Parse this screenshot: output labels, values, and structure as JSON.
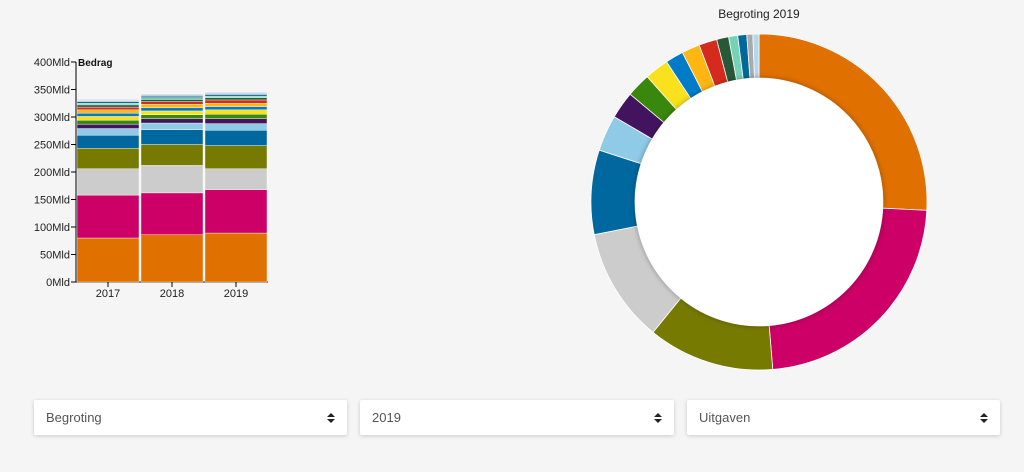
{
  "chart_data": [
    {
      "type": "bar",
      "stacked": true,
      "ylabel": "Bedrag",
      "ylim": [
        0,
        400
      ],
      "yticks": [
        "0Mld",
        "50Mld",
        "100Mld",
        "150Mld",
        "200Mld",
        "250Mld",
        "300Mld",
        "350Mld",
        "400Mld"
      ],
      "categories": [
        "2017",
        "2018",
        "2019"
      ],
      "series": [
        {
          "color": "#e07000",
          "values": [
            80,
            86,
            89
          ]
        },
        {
          "color": "#cc0066",
          "values": [
            78,
            76,
            79
          ]
        },
        {
          "color": "#cccccc",
          "values": [
            48,
            50,
            38
          ]
        },
        {
          "color": "#777a00",
          "values": [
            37,
            38,
            42
          ]
        },
        {
          "color": "#00689e",
          "values": [
            24,
            27,
            28
          ]
        },
        {
          "color": "#8fcae7",
          "values": [
            12,
            12,
            12
          ]
        },
        {
          "color": "#42145f",
          "values": [
            8,
            8,
            9
          ]
        },
        {
          "color": "#39870c",
          "values": [
            7,
            7,
            8
          ]
        },
        {
          "color": "#f9e11e",
          "values": [
            7,
            7,
            8
          ]
        },
        {
          "color": "#007bc7",
          "values": [
            6,
            6,
            6
          ]
        },
        {
          "color": "#ffb612",
          "values": [
            6,
            6,
            6
          ]
        },
        {
          "color": "#d52b1e",
          "values": [
            5,
            5,
            6
          ]
        },
        {
          "color": "#275937",
          "values": [
            4,
            4,
            4
          ]
        },
        {
          "color": "#76d2b6",
          "values": [
            3,
            3,
            3
          ]
        },
        {
          "color": "#01689b",
          "values": [
            3,
            3,
            3
          ]
        },
        {
          "color": "#aaaaaa",
          "values": [
            2,
            2,
            2
          ]
        },
        {
          "color": "#b2d7ee",
          "values": [
            2,
            2,
            2
          ]
        }
      ]
    },
    {
      "type": "pie",
      "donut": true,
      "title": "Begroting 2019",
      "slices": [
        {
          "color": "#e07000",
          "value": 89
        },
        {
          "color": "#cc0066",
          "value": 79
        },
        {
          "color": "#777a00",
          "value": 42
        },
        {
          "color": "#cccccc",
          "value": 38
        },
        {
          "color": "#00689e",
          "value": 28
        },
        {
          "color": "#8fcae7",
          "value": 12
        },
        {
          "color": "#42145f",
          "value": 9
        },
        {
          "color": "#39870c",
          "value": 8
        },
        {
          "color": "#f9e11e",
          "value": 8
        },
        {
          "color": "#007bc7",
          "value": 6
        },
        {
          "color": "#ffb612",
          "value": 6
        },
        {
          "color": "#d52b1e",
          "value": 6
        },
        {
          "color": "#275937",
          "value": 4
        },
        {
          "color": "#76d2b6",
          "value": 3
        },
        {
          "color": "#01689b",
          "value": 3
        },
        {
          "color": "#aaaaaa",
          "value": 2
        },
        {
          "color": "#b2d7ee",
          "value": 2
        }
      ]
    }
  ],
  "filters": {
    "type_select": {
      "value": "Begroting"
    },
    "year_select": {
      "value": "2019"
    },
    "kind_select": {
      "value": "Uitgaven"
    }
  }
}
